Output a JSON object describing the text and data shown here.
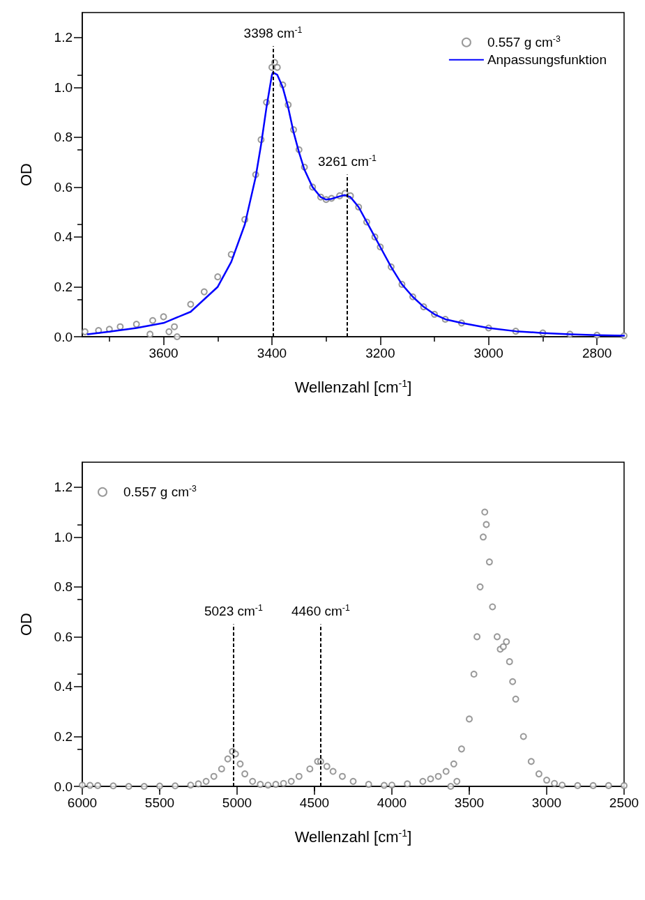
{
  "chart_data": [
    {
      "type": "scatter",
      "xlabel": "Wellenzahl [cm$^{-1}$]",
      "ylabel": "OD",
      "xlim": [
        3750,
        2750
      ],
      "xticks": [
        3600,
        3400,
        3200,
        3000,
        2800
      ],
      "ylim": [
        0,
        1.3
      ],
      "yticks": [
        {
          "value": 0,
          "label": "0.0"
        },
        {
          "value": 0.2,
          "label": "0.2"
        },
        {
          "value": 0.4,
          "label": "0.4"
        },
        {
          "value": 0.6,
          "label": "0.6"
        },
        {
          "value": 0.8,
          "label": "0.8"
        },
        {
          "value": 1,
          "label": "1.0"
        },
        {
          "value": 1.2,
          "label": "1.2"
        }
      ],
      "grid": false,
      "legend": "top right",
      "series": [
        {
          "name": "0.557 g cm$^{-3}$",
          "marker": "circle",
          "color": "#808080",
          "x": [
            3745,
            3720,
            3700,
            3680,
            3650,
            3625,
            3620,
            3600,
            3590,
            3580,
            3575,
            3550,
            3525,
            3500,
            3475,
            3450,
            3430,
            3420,
            3410,
            3400,
            3395,
            3390,
            3380,
            3370,
            3360,
            3350,
            3340,
            3325,
            3310,
            3300,
            3290,
            3275,
            3265,
            3255,
            3240,
            3225,
            3210,
            3200,
            3180,
            3160,
            3140,
            3120,
            3100,
            3080,
            3050,
            3000,
            2950,
            2900,
            2850,
            2800,
            2750
          ],
          "values": [
            0.02,
            0.025,
            0.03,
            0.04,
            0.05,
            0.01,
            0.065,
            0.08,
            0.02,
            0.04,
            0.0,
            0.13,
            0.18,
            0.24,
            0.33,
            0.47,
            0.65,
            0.79,
            0.94,
            1.08,
            1.1,
            1.08,
            1.01,
            0.93,
            0.83,
            0.75,
            0.68,
            0.6,
            0.56,
            0.55,
            0.555,
            0.565,
            0.575,
            0.565,
            0.52,
            0.46,
            0.4,
            0.36,
            0.28,
            0.21,
            0.16,
            0.12,
            0.09,
            0.07,
            0.055,
            0.035,
            0.022,
            0.015,
            0.01,
            0.006,
            0.004
          ]
        },
        {
          "name": "Anpassungsfunktion",
          "type": "line",
          "marker": "none",
          "color": "#0000ff",
          "x": [
            3740,
            3700,
            3650,
            3600,
            3550,
            3500,
            3475,
            3450,
            3430,
            3420,
            3410,
            3400,
            3398,
            3390,
            3380,
            3370,
            3360,
            3350,
            3340,
            3325,
            3310,
            3300,
            3290,
            3275,
            3265,
            3255,
            3240,
            3225,
            3210,
            3200,
            3180,
            3160,
            3140,
            3120,
            3100,
            3080,
            3050,
            3000,
            2950,
            2900,
            2850,
            2800,
            2750
          ],
          "values": [
            0.01,
            0.02,
            0.035,
            0.055,
            0.1,
            0.2,
            0.3,
            0.45,
            0.64,
            0.77,
            0.92,
            1.05,
            1.06,
            1.05,
            1.0,
            0.92,
            0.82,
            0.74,
            0.67,
            0.6,
            0.56,
            0.55,
            0.553,
            0.563,
            0.568,
            0.56,
            0.52,
            0.46,
            0.4,
            0.36,
            0.28,
            0.21,
            0.16,
            0.12,
            0.09,
            0.07,
            0.055,
            0.035,
            0.022,
            0.015,
            0.01,
            0.006,
            0.004
          ]
        }
      ],
      "ref_lines": [
        {
          "axis": "x",
          "value": 3398,
          "label": "3398 cm$^{-1}$",
          "color": "#000000",
          "line_style": "dashed"
        },
        {
          "axis": "x",
          "value": 3261,
          "label": "3261 cm$^{-1}$",
          "color": "#000000",
          "line_style": "dashed"
        }
      ]
    },
    {
      "type": "scatter",
      "xlabel": "Wellenzahl [cm$^{-1}$]",
      "ylabel": "OD",
      "xlim": [
        6000,
        2500
      ],
      "xticks": [
        6000,
        5500,
        5000,
        4500,
        4000,
        3500,
        3000,
        2500
      ],
      "ylim": [
        0,
        1.3
      ],
      "yticks": [
        {
          "value": 0,
          "label": "0.0"
        },
        {
          "value": 0.2,
          "label": "0.2"
        },
        {
          "value": 0.4,
          "label": "0.4"
        },
        {
          "value": 0.6,
          "label": "0.6"
        },
        {
          "value": 0.8,
          "label": "0.8"
        },
        {
          "value": 1,
          "label": "1.0"
        },
        {
          "value": 1.2,
          "label": "1.2"
        }
      ],
      "grid": false,
      "legend": "top left",
      "series": [
        {
          "name": "0.557 g cm$^{-3}$",
          "marker": "circle",
          "color": "#808080",
          "x": [
            6000,
            5950,
            5900,
            5800,
            5700,
            5600,
            5500,
            5400,
            5300,
            5250,
            5200,
            5150,
            5100,
            5060,
            5030,
            5010,
            4980,
            4950,
            4900,
            4850,
            4800,
            4750,
            4700,
            4650,
            4600,
            4530,
            4480,
            4460,
            4420,
            4380,
            4320,
            4250,
            4150,
            4050,
            4000,
            3900,
            3800,
            3750,
            3700,
            3650,
            3620,
            3600,
            3580,
            3550,
            3500,
            3470,
            3450,
            3430,
            3410,
            3400,
            3390,
            3370,
            3350,
            3320,
            3300,
            3280,
            3260,
            3240,
            3220,
            3200,
            3150,
            3100,
            3050,
            3000,
            2950,
            2900,
            2800,
            2700,
            2600,
            2500
          ],
          "values": [
            0.005,
            0.004,
            0.003,
            0.002,
            0.0,
            0.0,
            0.001,
            0.002,
            0.005,
            0.01,
            0.02,
            0.04,
            0.07,
            0.11,
            0.14,
            0.13,
            0.09,
            0.05,
            0.02,
            0.008,
            0.005,
            0.008,
            0.012,
            0.02,
            0.04,
            0.07,
            0.1,
            0.1,
            0.08,
            0.06,
            0.04,
            0.02,
            0.008,
            0.004,
            0.005,
            0.01,
            0.02,
            0.03,
            0.04,
            0.06,
            0.0,
            0.09,
            0.02,
            0.15,
            0.27,
            0.45,
            0.6,
            0.8,
            1.0,
            1.1,
            1.05,
            0.9,
            0.72,
            0.6,
            0.55,
            0.56,
            0.58,
            0.5,
            0.42,
            0.35,
            0.2,
            0.1,
            0.05,
            0.025,
            0.012,
            0.005,
            0.003,
            0.003,
            0.003,
            0.003
          ]
        }
      ],
      "ref_lines": [
        {
          "axis": "x",
          "value": 5023,
          "label": "5023 cm$^{-1}$",
          "color": "#000000",
          "line_style": "dashed"
        },
        {
          "axis": "x",
          "value": 4460,
          "label": "4460 cm$^{-1}$",
          "color": "#000000",
          "line_style": "dashed"
        }
      ]
    }
  ]
}
